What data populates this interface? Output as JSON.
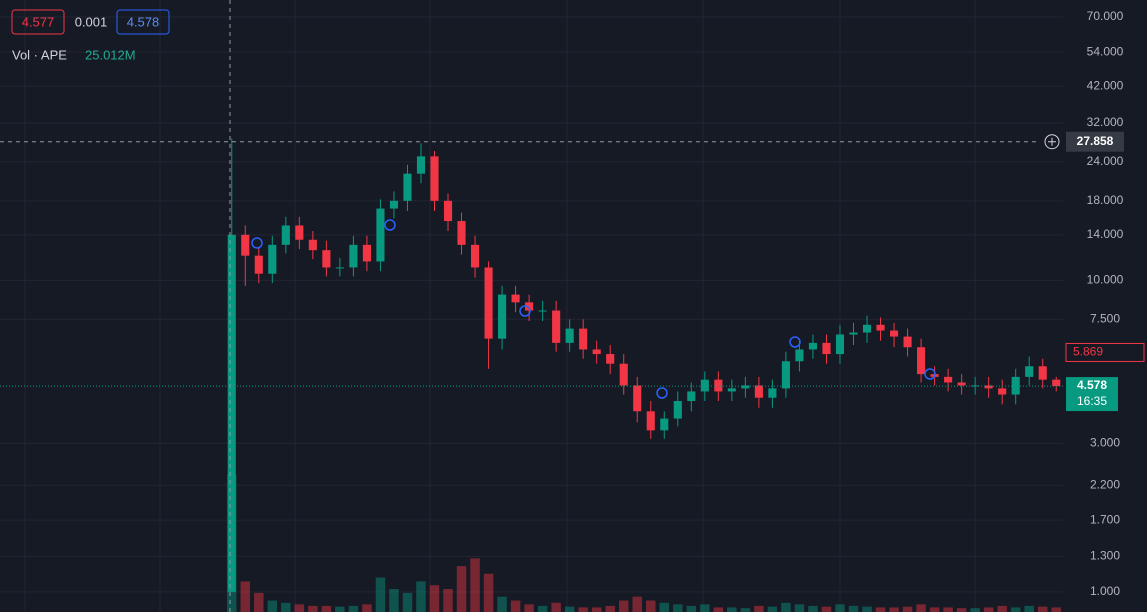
{
  "chart_data": {
    "type": "candlestick",
    "legend": [
      "4.577",
      "0.001",
      "4.578"
    ],
    "volume_label": "Vol · APE",
    "volume_value": "25.012M",
    "log_scale": true,
    "grid": true,
    "up_color": "#089981",
    "down_color": "#f23645",
    "open": [
      1.0,
      14,
      12,
      10.5,
      13,
      15,
      13.5,
      12.5,
      11,
      11,
      13,
      11.5,
      17,
      18,
      22,
      25,
      18,
      15.5,
      13,
      11,
      6.5,
      9,
      8.5,
      8,
      8,
      6.3,
      7,
      6,
      5.8,
      5.4,
      4.6,
      3.8,
      3.3,
      3.6,
      4.1,
      4.4,
      4.8,
      4.4,
      4.5,
      4.6,
      4.2,
      4.5,
      5.5,
      6,
      6.3,
      5.8,
      6.7,
      6.8,
      7.2,
      6.9,
      6.6,
      6.1,
      5,
      4.9,
      4.7,
      4.6,
      4.6,
      4.5,
      4.3,
      4.9,
      5.3,
      4.8
    ],
    "high": [
      28.5,
      15,
      12.8,
      13.9,
      16,
      16,
      14.4,
      13.4,
      11.8,
      13.9,
      13.9,
      18.2,
      19.3,
      23.5,
      27.5,
      26,
      19,
      16.5,
      13.9,
      11.5,
      9.6,
      9.6,
      9,
      8.6,
      8.6,
      7.5,
      7.5,
      6.4,
      6.2,
      5.8,
      4.9,
      4.1,
      3.8,
      4.4,
      4.7,
      5.1,
      5.1,
      4.8,
      4.9,
      4.9,
      4.8,
      5.9,
      6.4,
      6.7,
      6.7,
      7.2,
      7.3,
      7.7,
      7.6,
      7.3,
      7,
      6.5,
      5.3,
      5.2,
      5,
      4.9,
      4.9,
      4.8,
      5.2,
      5.7,
      5.6,
      4.9
    ],
    "low": [
      1.0,
      9.6,
      9.8,
      9.8,
      12.2,
      12.6,
      11.7,
      10.3,
      10.3,
      10.3,
      10.7,
      10.7,
      15.8,
      16.7,
      20.5,
      16.7,
      14.4,
      12.1,
      10.2,
      5.2,
      6,
      7.9,
      7.4,
      7.4,
      5.9,
      5.9,
      5.6,
      5.4,
      5,
      4.3,
      3.5,
      3.1,
      3.1,
      3.4,
      3.8,
      4.1,
      4.1,
      4.1,
      4.2,
      3.9,
      3.9,
      4.2,
      5.1,
      5.6,
      5.4,
      5.4,
      6.2,
      6.3,
      6.4,
      6.1,
      5.7,
      4.7,
      4.6,
      4.4,
      4.3,
      4.3,
      4.2,
      4,
      4,
      4.6,
      4.5,
      4.4
    ],
    "close": [
      14,
      12,
      10.5,
      13,
      15,
      13.5,
      12.5,
      11,
      11,
      13,
      11.5,
      17,
      18,
      22,
      25,
      18,
      15.5,
      13,
      11,
      6.5,
      9,
      8.5,
      8,
      8,
      6.3,
      7,
      6,
      5.8,
      5.4,
      4.6,
      3.8,
      3.3,
      3.6,
      4.1,
      4.4,
      4.8,
      4.4,
      4.5,
      4.6,
      4.2,
      4.5,
      5.5,
      6,
      6.3,
      5.8,
      6.7,
      6.8,
      7.2,
      6.9,
      6.6,
      6.1,
      5,
      4.9,
      4.7,
      4.6,
      4.6,
      4.5,
      4.3,
      4.9,
      5.3,
      4.8,
      4.578
    ],
    "volume": [
      180,
      40,
      25,
      15,
      12,
      10,
      8,
      8,
      7,
      8,
      10,
      45,
      30,
      25,
      40,
      35,
      30,
      60,
      70,
      50,
      20,
      15,
      10,
      8,
      12,
      7,
      6,
      6,
      8,
      15,
      20,
      15,
      12,
      10,
      8,
      10,
      6,
      6,
      5,
      8,
      7,
      12,
      10,
      8,
      7,
      10,
      8,
      7,
      6,
      6,
      7,
      10,
      6,
      6,
      5,
      5,
      6,
      8,
      6,
      8,
      7,
      6
    ],
    "volume_lim": [
      0,
      800
    ],
    "ylim": [
      0.862,
      79.4
    ],
    "yticks": [
      {
        "value": 70,
        "label": "70.000"
      },
      {
        "value": 54,
        "label": "54.000"
      },
      {
        "value": 42,
        "label": "42.000"
      },
      {
        "value": 32,
        "label": "32.000"
      },
      {
        "value": 24,
        "label": "24.000"
      },
      {
        "value": 18,
        "label": "18.000"
      },
      {
        "value": 14,
        "label": "14.000"
      },
      {
        "value": 10,
        "label": "10.000"
      },
      {
        "value": 7.5,
        "label": "7.500"
      },
      {
        "value": 3,
        "label": "3.000"
      },
      {
        "value": 2.2,
        "label": "2.200"
      },
      {
        "value": 1.7,
        "label": "1.700"
      },
      {
        "value": 1.3,
        "label": "1.300"
      },
      {
        "value": 1,
        "label": "1.000"
      }
    ],
    "crosshair": {
      "value": 27.858,
      "label": "27.858"
    },
    "last_price": {
      "value": 5.869,
      "label": "5.869"
    },
    "current_price": {
      "value": 4.578,
      "label": "4.578",
      "countdown": "16:35"
    }
  }
}
